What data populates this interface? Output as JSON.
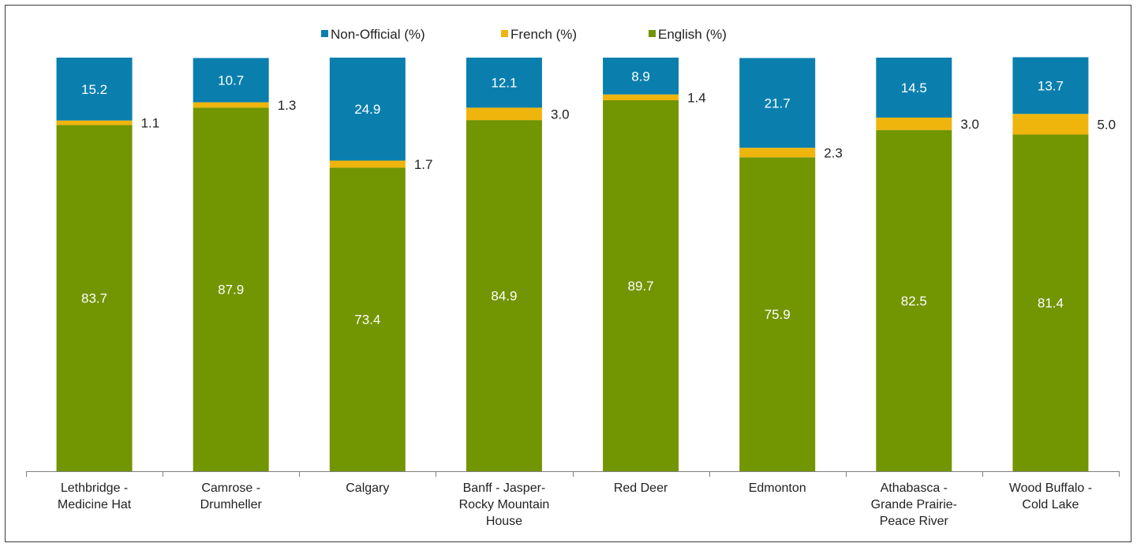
{
  "chart_data": {
    "type": "bar",
    "stacked": true,
    "title": "",
    "xlabel": "",
    "ylabel": "",
    "ylim": [
      0,
      100
    ],
    "grid": false,
    "legend_position": "top",
    "categories": [
      [
        "Lethbridge -",
        "Medicine Hat"
      ],
      [
        "Camrose -",
        "Drumheller"
      ],
      [
        "Calgary"
      ],
      [
        "Banff - Jasper-",
        "Rocky Mountain",
        "House"
      ],
      [
        "Red Deer"
      ],
      [
        "Edmonton"
      ],
      [
        "Athabasca -",
        "Grande Prairie-",
        "Peace River"
      ],
      [
        "Wood Buffalo -",
        "Cold Lake"
      ]
    ],
    "series": [
      {
        "name": "English (%)",
        "color": "#729502",
        "values": [
          83.7,
          87.9,
          73.4,
          84.9,
          89.7,
          75.9,
          82.5,
          81.4
        ],
        "labels": [
          "83.7",
          "87.9",
          "73.4",
          "84.9",
          "89.7",
          "75.9",
          "82.5",
          "81.4"
        ]
      },
      {
        "name": "French (%)",
        "color": "#EFB50C",
        "values": [
          1.1,
          1.3,
          1.7,
          3.0,
          1.4,
          2.3,
          3.0,
          5.0
        ],
        "labels": [
          "1.1",
          "1.3",
          "1.7",
          "3.0",
          "1.4",
          "2.3",
          "3.0",
          "5.0"
        ]
      },
      {
        "name": "Non-Official (%)",
        "color": "#0A7FAE",
        "values": [
          15.2,
          10.7,
          24.9,
          12.1,
          8.9,
          21.7,
          14.5,
          13.7
        ],
        "labels": [
          "15.2",
          "10.7",
          "24.9",
          "12.1",
          "8.9",
          "21.7",
          "14.5",
          "13.7"
        ]
      }
    ],
    "legend_order": [
      "Non-Official (%)",
      "French (%)",
      "English (%)"
    ]
  }
}
